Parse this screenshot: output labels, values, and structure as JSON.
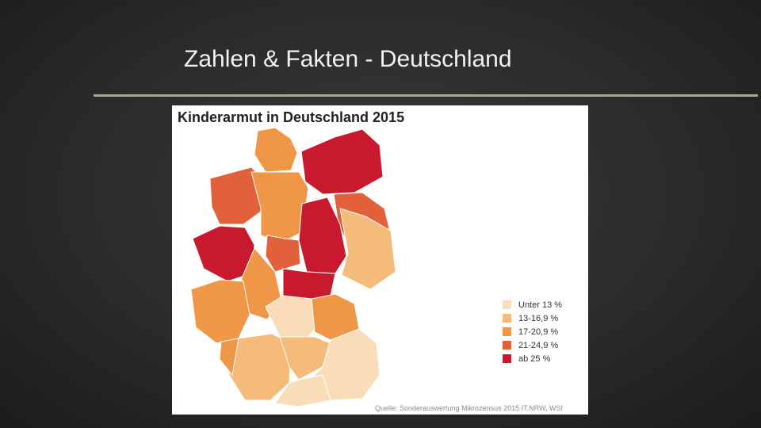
{
  "slide": {
    "title": "Zahlen & Fakten - Deutschland"
  },
  "figure": {
    "title": "Kinderarmut in Deutschland 2015",
    "legend": [
      {
        "label": "Unter 13 %",
        "color": "#f9dcb8"
      },
      {
        "label": "13-16,9 %",
        "color": "#f5bb7b"
      },
      {
        "label": "17-20,9 %",
        "color": "#ef9746"
      },
      {
        "label": "21-24,9 %",
        "color": "#e2613a"
      },
      {
        "label": "ab 25 %",
        "color": "#c8192e"
      }
    ],
    "source": "Quelle: Sonderauswertung Mikrozensus 2015 IT.NRW, WSI"
  }
}
